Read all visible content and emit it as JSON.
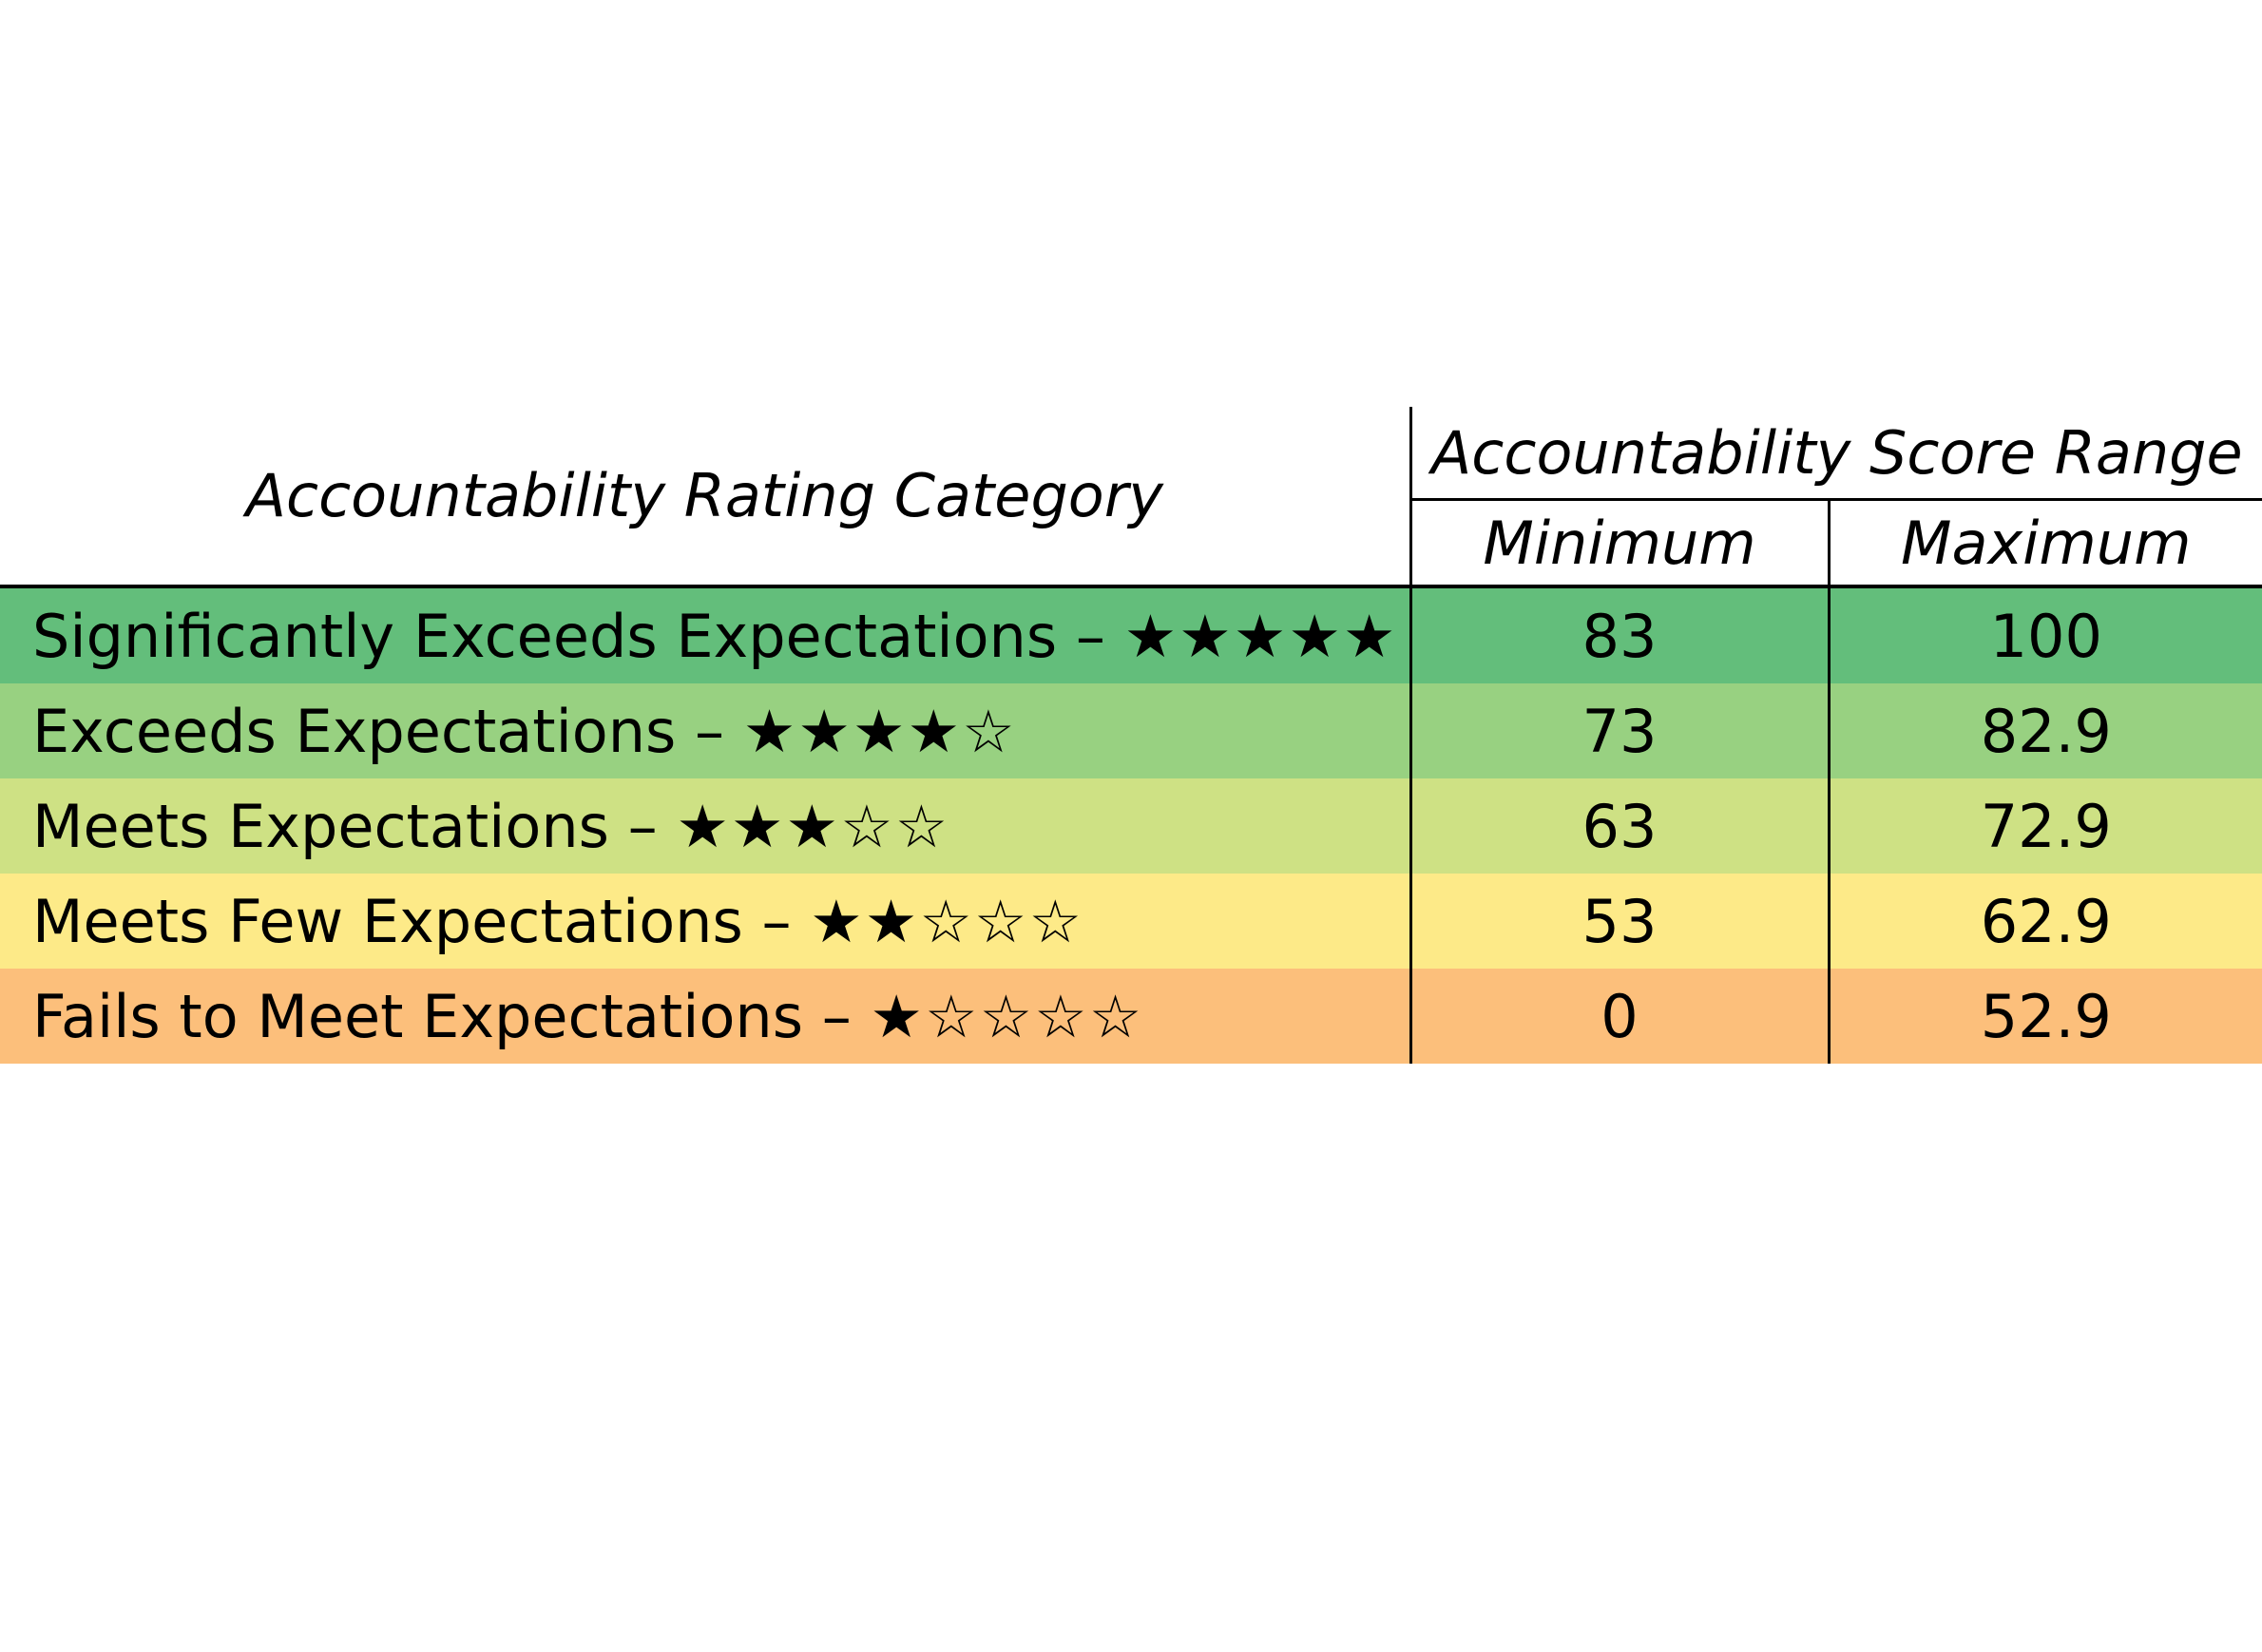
{
  "table": {
    "category_header": "Accountability Rating Category",
    "range_header": "Accountability Score Range",
    "min_header": "Minimum",
    "max_header": "Maximum",
    "rows": [
      {
        "label": "Significantly Exceeds Expectations – ",
        "stars": "★★★★★",
        "min": "83",
        "max": "100",
        "color": "#63be7b"
      },
      {
        "label": "Exceeds Expectations – ",
        "stars": "★★★★☆",
        "min": "73",
        "max": "82.9",
        "color": "#98d181"
      },
      {
        "label": "Meets Expectations – ",
        "stars": "★★★☆☆",
        "min": "63",
        "max": "72.9",
        "color": "#cee184"
      },
      {
        "label": "Meets Few Expectations – ",
        "stars": "★★☆☆☆",
        "min": "53",
        "max": "62.9",
        "color": "#fdea88"
      },
      {
        "label": "Fails to Meet Expectations – ",
        "stars": "★☆☆☆☆",
        "min": "0",
        "max": "52.9",
        "color": "#fcbf7b"
      }
    ]
  }
}
